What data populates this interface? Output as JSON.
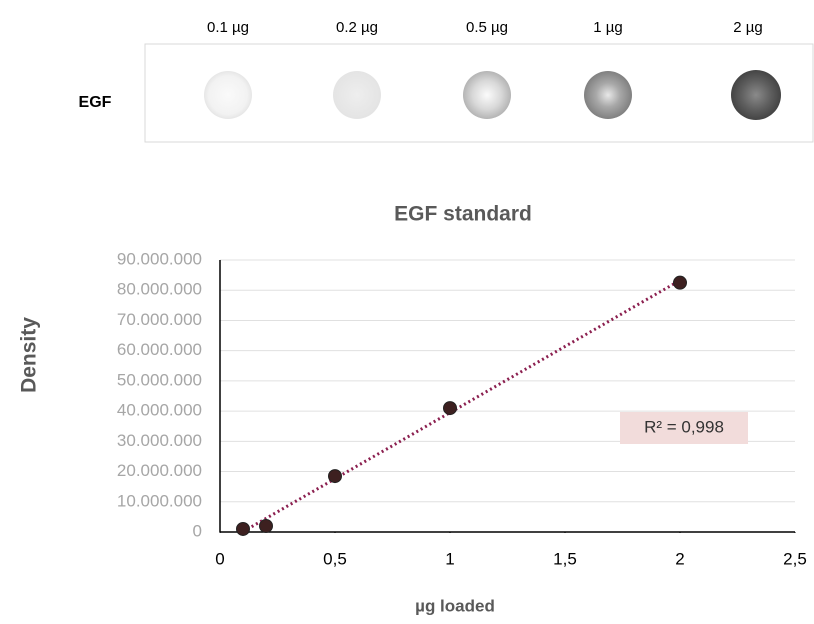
{
  "blot": {
    "row_label": "EGF",
    "lanes": [
      "0.1 µg",
      "0.2 µg",
      "0.5 µg",
      "1 µg",
      "2 µg"
    ]
  },
  "chart_data": {
    "type": "scatter",
    "title": "EGF standard",
    "x_label": "µg loaded",
    "y_label": "Density",
    "x": [
      0.1,
      0.2,
      0.5,
      1,
      2
    ],
    "values": [
      1000000,
      2000000,
      18500000,
      41000000,
      82500000
    ],
    "color": "#3d2020",
    "trendline_color": "#8b1f4f",
    "annotation": "R² = 0,998",
    "xlim": [
      0,
      2.5
    ],
    "xticks": [
      0,
      {
        "value": 0.5,
        "label": "0,5"
      },
      1,
      {
        "value": 1.5,
        "label": "1,5"
      },
      2,
      {
        "value": 2.5,
        "label": "2,5"
      }
    ],
    "ylim": [
      0,
      90000000
    ],
    "yticks": [
      0,
      {
        "value": 10000000,
        "label": "10.000.000"
      },
      {
        "value": 20000000,
        "label": "20.000.000"
      },
      {
        "value": 30000000,
        "label": "30.000.000"
      },
      {
        "value": 40000000,
        "label": "40.000.000"
      },
      {
        "value": 50000000,
        "label": "50.000.000"
      },
      {
        "value": 60000000,
        "label": "60.000.000"
      },
      {
        "value": 70000000,
        "label": "70.000.000"
      },
      {
        "value": 80000000,
        "label": "80.000.000"
      },
      {
        "value": 90000000,
        "label": "90.000.000"
      }
    ],
    "grid": true
  }
}
